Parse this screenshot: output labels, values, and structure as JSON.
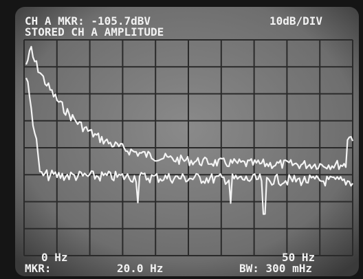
{
  "header": {
    "marker": "CH A MKR: -105.7dBV",
    "scale": "10dB/DIV",
    "mode": "STORED CH A AMPLITUDE"
  },
  "footer": {
    "start": "0 Hz",
    "marker_label": "MKR:",
    "marker_value": "20.0 Hz",
    "end": "50 Hz",
    "bandwidth": "BW: 300 mHz"
  }
}
